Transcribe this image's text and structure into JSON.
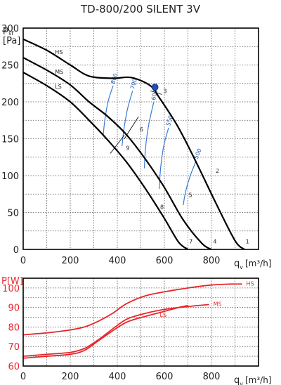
{
  "chart_data": [
    {
      "type": "line",
      "title": "TD-800/200 SILENT 3V",
      "ylabel_main": "p",
      "ylabel_sub": "sf",
      "ylabel_unit": "[Pa]",
      "xlabel_main": "q",
      "xlabel_sub": "v",
      "xlabel_unit": "[m³/h]",
      "xlim": [
        0,
        1000
      ],
      "ylim": [
        0,
        300
      ],
      "xticks": [
        "0",
        "200",
        "400",
        "600",
        "800"
      ],
      "yticks": [
        "0",
        "50",
        "100",
        "150",
        "200",
        "250",
        "300"
      ],
      "grid": true,
      "series": [
        {
          "name": "HS",
          "x": [
            0,
            100,
            200,
            280,
            380,
            460,
            540,
            580,
            660,
            740,
            820,
            900,
            940
          ],
          "y": [
            285,
            270,
            250,
            235,
            232,
            233,
            222,
            205,
            165,
            115,
            62,
            12,
            0
          ]
        },
        {
          "name": "MS",
          "x": [
            0,
            100,
            200,
            280,
            360,
            440,
            520,
            600,
            680,
            760,
            800
          ],
          "y": [
            260,
            243,
            223,
            200,
            180,
            155,
            122,
            84,
            40,
            8,
            0
          ]
        },
        {
          "name": "LS",
          "x": [
            0,
            100,
            200,
            280,
            360,
            440,
            520,
            600,
            660,
            700
          ],
          "y": [
            240,
            222,
            200,
            175,
            148,
            118,
            82,
            42,
            10,
            0
          ]
        }
      ],
      "rpm_curves": [
        {
          "label": "800",
          "x": [
            340,
            348,
            362,
            382
          ],
          "y": [
            155,
            178,
            202,
            222
          ]
        },
        {
          "label": "700",
          "x": [
            420,
            428,
            443,
            465
          ],
          "y": [
            140,
            163,
            190,
            215
          ]
        },
        {
          "label": "600",
          "x": [
            515,
            520,
            534,
            555
          ],
          "y": [
            110,
            138,
            170,
            200
          ]
        },
        {
          "label": "550",
          "x": [
            578,
            584,
            597,
            618
          ],
          "y": [
            82,
            110,
            140,
            165
          ]
        },
        {
          "label": "500",
          "x": [
            680,
            690,
            710,
            735
          ],
          "y": [
            60,
            78,
            100,
            120
          ]
        }
      ],
      "system_lines": [
        {
          "label": "3",
          "x": [
            540,
            590
          ],
          "y": [
            215,
            210
          ]
        },
        {
          "label": "6",
          "x": [
            430,
            490
          ],
          "y": [
            150,
            180
          ]
        },
        {
          "label": "9",
          "x": [
            370,
            430
          ],
          "y": [
            130,
            155
          ]
        }
      ],
      "point_labels": [
        {
          "label": "HS",
          "x": 135,
          "y": 265
        },
        {
          "label": "MS",
          "x": 135,
          "y": 238
        },
        {
          "label": "LS",
          "x": 135,
          "y": 218
        },
        {
          "label": "3",
          "x": 595,
          "y": 212
        },
        {
          "label": "6",
          "x": 495,
          "y": 160
        },
        {
          "label": "9",
          "x": 437,
          "y": 135
        },
        {
          "label": "2",
          "x": 818,
          "y": 104
        },
        {
          "label": "5",
          "x": 703,
          "y": 71
        },
        {
          "label": "8",
          "x": 582,
          "y": 55
        },
        {
          "label": "1",
          "x": 945,
          "y": 8
        },
        {
          "label": "4",
          "x": 807,
          "y": 8
        },
        {
          "label": "7",
          "x": 705,
          "y": 8
        }
      ],
      "operating_point": {
        "x": 560,
        "y": 220,
        "color": "#1f4fb5"
      }
    },
    {
      "type": "line",
      "ylabel": "P[W]",
      "xlabel_main": "q",
      "xlabel_sub": "v",
      "xlabel_unit": "[m³/h]",
      "xlim": [
        0,
        1000
      ],
      "ylim": [
        60,
        105
      ],
      "xticks": [
        "0",
        "200",
        "400",
        "600",
        "800"
      ],
      "yticks": [
        "60",
        "70",
        "80",
        "90",
        "100"
      ],
      "grid": true,
      "color": "#e8262b",
      "series": [
        {
          "name": "HS",
          "x": [
            0,
            100,
            200,
            260,
            320,
            380,
            440,
            520,
            600,
            700,
            800,
            880,
            930
          ],
          "y": [
            76,
            77,
            78.5,
            80,
            83,
            87,
            92,
            96,
            98,
            100,
            101.5,
            102,
            102
          ]
        },
        {
          "name": "MS",
          "x": [
            0,
            100,
            200,
            260,
            320,
            380,
            440,
            520,
            600,
            700,
            790
          ],
          "y": [
            65,
            66,
            67,
            69,
            73.5,
            79,
            84,
            87,
            89,
            90.5,
            91.5
          ]
        },
        {
          "name": "LS",
          "x": [
            0,
            100,
            200,
            260,
            320,
            380,
            440,
            520,
            600,
            660,
            700
          ],
          "y": [
            64,
            65,
            66,
            68,
            73,
            78,
            82.5,
            85.5,
            88,
            90,
            91
          ]
        }
      ]
    }
  ]
}
